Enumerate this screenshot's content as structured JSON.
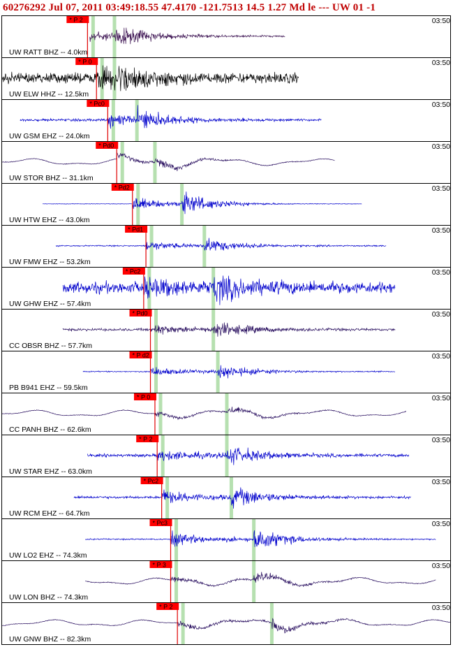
{
  "header": {
    "text": "60276292 Jul 07, 2011 03:49:18.55   47.4170 -121.7513 14.5 1.27 Md le --- UW 01  -1"
  },
  "chart_data": {
    "type": "seismogram",
    "title": "60276292 Jul 07, 2011 03:49:18.55   47.4170 -121.7513 14.5 1.27 Md le --- UW 01  -1",
    "time_label": "03:50",
    "traces": [
      {
        "label": "UW RATT BHZ -- 4.0km",
        "pick": "P 2",
        "color": "#3a1050",
        "start": 0.195,
        "end": 0.63,
        "p": 0.19,
        "s": 0.25,
        "noise": 0.07,
        "amp": 0.8,
        "lowfreq": false
      },
      {
        "label": "UW ELW HHZ -- 12.5km",
        "pick": "P 0",
        "color": "#000000",
        "start": 0.0,
        "end": 0.66,
        "p": 0.21,
        "s": 0.25,
        "noise": 0.4,
        "amp": 0.9,
        "lowfreq": false
      },
      {
        "label": "UW GSM EHZ -- 24.0km",
        "pick": "Pc0",
        "color": "#0000cc",
        "start": 0.04,
        "end": 0.71,
        "p": 0.235,
        "s": 0.3,
        "noise": 0.1,
        "amp": 0.8,
        "lowfreq": false
      },
      {
        "label": "UW STOR BHZ -- 31.1km",
        "pick": "Pd0",
        "color": "#2a1060",
        "start": 0.0,
        "end": 0.74,
        "p": 0.255,
        "s": 0.34,
        "noise": 0.05,
        "amp": 0.7,
        "lowfreq": true
      },
      {
        "label": "UW HTW EHZ -- 43.0km",
        "pick": "Pd2",
        "color": "#0000cc",
        "start": 0.09,
        "end": 0.8,
        "p": 0.29,
        "s": 0.4,
        "noise": 0.02,
        "amp": 0.9,
        "lowfreq": false
      },
      {
        "label": "UW FMW EHZ -- 53.2km",
        "pick": "Pd1",
        "color": "#0000cc",
        "start": 0.12,
        "end": 0.855,
        "p": 0.32,
        "s": 0.45,
        "noise": 0.05,
        "amp": 0.6,
        "lowfreq": false
      },
      {
        "label": "UW GHW EHZ -- 57.4km",
        "pick": "Pc2",
        "color": "#0000cc",
        "start": 0.135,
        "end": 0.875,
        "p": 0.315,
        "s": 0.47,
        "noise": 0.45,
        "amp": 0.8,
        "lowfreq": false
      },
      {
        "label": "CC OBSR BHZ -- 57.7km",
        "pick": "Pd0",
        "color": "#2a1060",
        "start": 0.135,
        "end": 0.875,
        "p": 0.33,
        "s": 0.47,
        "noise": 0.1,
        "amp": 0.6,
        "lowfreq": false
      },
      {
        "label": "PB B941 EHZ -- 59.5km",
        "pick": "P d2",
        "color": "#0000cc",
        "start": 0.18,
        "end": 0.875,
        "p": 0.33,
        "s": 0.48,
        "noise": 0.04,
        "amp": 0.6,
        "lowfreq": false
      },
      {
        "label": "CC PANH BHZ -- 62.6km",
        "pick": "P 0",
        "color": "#2a1060",
        "start": 0.0,
        "end": 0.9,
        "p": 0.34,
        "s": 0.5,
        "noise": 0.05,
        "amp": 0.6,
        "lowfreq": true
      },
      {
        "label": "UW STAR EHZ -- 63.0km",
        "pick": "P 2",
        "color": "#0000cc",
        "start": 0.19,
        "end": 0.905,
        "p": 0.345,
        "s": 0.5,
        "noise": 0.12,
        "amp": 0.7,
        "lowfreq": false
      },
      {
        "label": "UW RCM EHZ -- 64.7km",
        "pick": "Pc2",
        "color": "#0000cc",
        "start": 0.16,
        "end": 0.91,
        "p": 0.355,
        "s": 0.51,
        "noise": 0.1,
        "amp": 0.8,
        "lowfreq": false
      },
      {
        "label": "UW LO2 EHZ -- 74.3km",
        "pick": "Pc3",
        "color": "#0000cc",
        "start": 0.185,
        "end": 0.965,
        "p": 0.375,
        "s": 0.56,
        "noise": 0.05,
        "amp": 0.9,
        "lowfreq": false
      },
      {
        "label": "UW LON BHZ -- 74.3km",
        "pick": "P 3",
        "color": "#2a1060",
        "start": 0.185,
        "end": 0.965,
        "p": 0.375,
        "s": 0.56,
        "noise": 0.06,
        "amp": 0.7,
        "lowfreq": true
      },
      {
        "label": "UW GNW BHZ -- 82.3km",
        "pick": "P 2",
        "color": "#2a1060",
        "start": 0.0,
        "end": 1.0,
        "p": 0.39,
        "s": 0.6,
        "noise": 0.05,
        "amp": 0.8,
        "lowfreq": true
      }
    ],
    "pick_color": "#ff0000",
    "marker_color": "#b6e0b0"
  }
}
